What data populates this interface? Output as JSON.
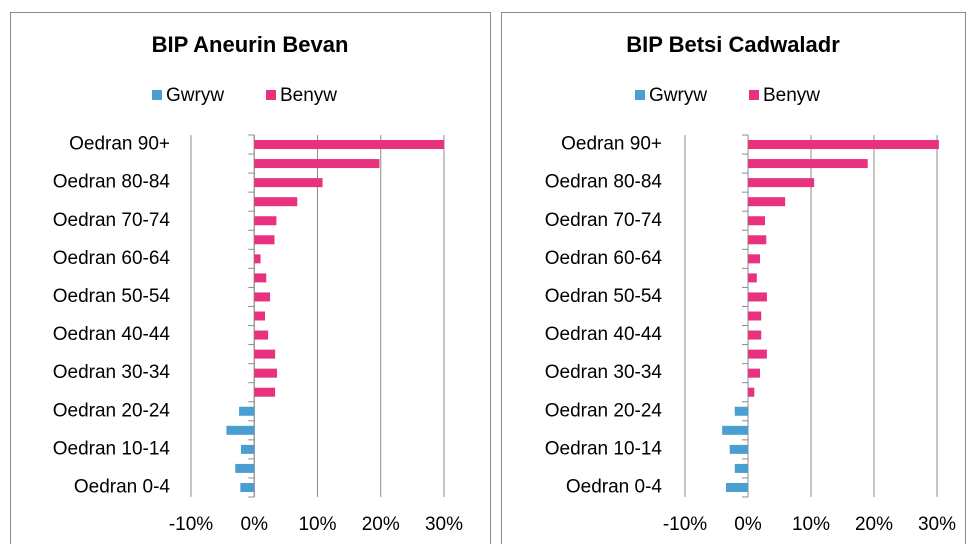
{
  "chart_data": [
    {
      "type": "bar",
      "orientation": "horizontal",
      "title": "BIP Aneurin Bevan",
      "categories": [
        "Oedran 90+",
        null,
        "Oedran 80-84",
        null,
        "Oedran 70-74",
        null,
        "Oedran 60-64",
        null,
        "Oedran 50-54",
        null,
        "Oedran 40-44",
        null,
        "Oedran 30-34",
        null,
        "Oedran 20-24",
        null,
        "Oedran 10-14",
        null,
        "Oedran 0-4"
      ],
      "series": [
        {
          "name": "Gwryw",
          "color": "#4a9fd0",
          "values": [
            null,
            null,
            null,
            null,
            null,
            null,
            null,
            null,
            null,
            null,
            null,
            null,
            null,
            null,
            -2.4,
            -4.4,
            -2.1,
            -3.0,
            -2.2
          ]
        },
        {
          "name": "Benyw",
          "color": "#e8317f",
          "values": [
            30,
            19.8,
            10.8,
            6.8,
            3.5,
            3.2,
            1.0,
            1.9,
            2.5,
            1.7,
            2.2,
            3.3,
            3.6,
            3.3,
            null,
            null,
            null,
            null,
            null
          ]
        }
      ],
      "xlim": [
        -10,
        30
      ],
      "xticks": [
        {
          "value": -10,
          "label": "-10%"
        },
        {
          "value": 0,
          "label": "0%"
        },
        {
          "value": 10,
          "label": "10%"
        },
        {
          "value": 20,
          "label": "20%"
        },
        {
          "value": 30,
          "label": "30%"
        }
      ],
      "grid": true,
      "legend": "top"
    },
    {
      "type": "bar",
      "orientation": "horizontal",
      "title": "BIP Betsi Cadwaladr",
      "categories": [
        "Oedran 90+",
        null,
        "Oedran 80-84",
        null,
        "Oedran 70-74",
        null,
        "Oedran 60-64",
        null,
        "Oedran 50-54",
        null,
        "Oedran 40-44",
        null,
        "Oedran 30-34",
        null,
        "Oedran 20-24",
        null,
        "Oedran 10-14",
        null,
        "Oedran 0-4"
      ],
      "series": [
        {
          "name": "Gwryw",
          "color": "#4a9fd0",
          "values": [
            null,
            null,
            null,
            null,
            null,
            null,
            null,
            null,
            null,
            null,
            null,
            null,
            null,
            null,
            -2.1,
            -4.1,
            -2.9,
            -2.1,
            -3.5
          ]
        },
        {
          "name": "Benyw",
          "color": "#e8317f",
          "values": [
            30.3,
            19.0,
            10.5,
            5.9,
            2.7,
            2.9,
            1.9,
            1.4,
            3.0,
            2.1,
            2.1,
            3.0,
            1.9,
            1.0,
            null,
            null,
            null,
            null,
            null
          ]
        }
      ],
      "xlim": [
        -10,
        30
      ],
      "xticks": [
        {
          "value": -10,
          "label": "-10%"
        },
        {
          "value": 0,
          "label": "0%"
        },
        {
          "value": 10,
          "label": "10%"
        },
        {
          "value": 20,
          "label": "20%"
        },
        {
          "value": 30,
          "label": "30%"
        }
      ],
      "grid": true,
      "legend": "top"
    }
  ]
}
